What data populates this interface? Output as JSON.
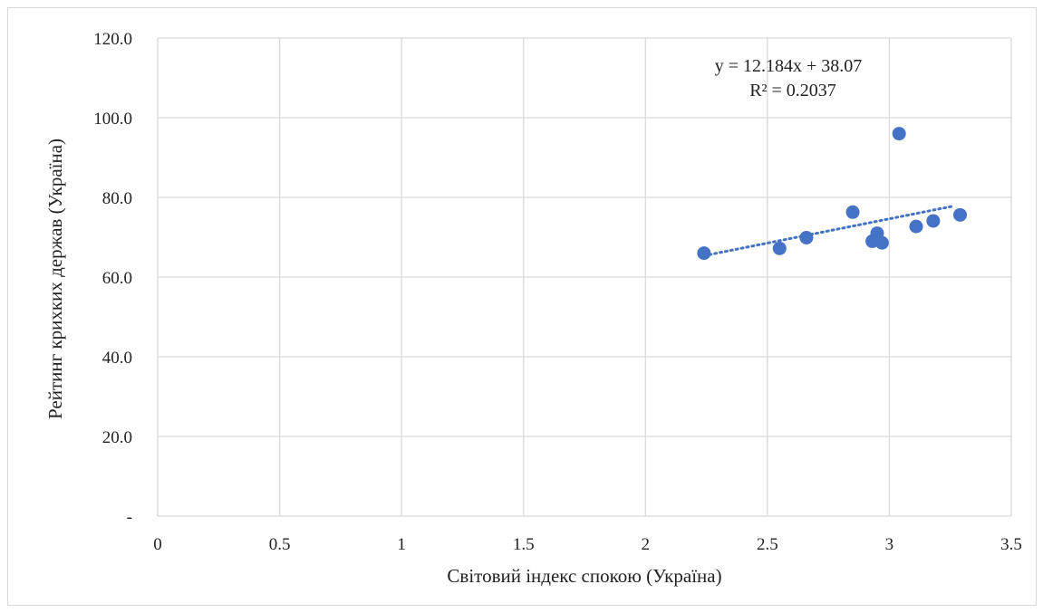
{
  "chart_data": {
    "type": "scatter",
    "xlabel": "Світовий індекс спокою (Україна)",
    "ylabel": "Рейтинг крихких держав (Україна)",
    "xlim": [
      0,
      3.5
    ],
    "ylim": [
      0,
      120
    ],
    "x_ticks": [
      "0",
      "0.5",
      "1",
      "1.5",
      "2",
      "2.5",
      "3",
      "3.5"
    ],
    "y_ticks": [
      "-",
      "20.0",
      "40.0",
      "60.0",
      "80.0",
      "100.0",
      "120.0"
    ],
    "grid": true,
    "color": "#4472c4",
    "series": [
      {
        "points": [
          {
            "x": 2.24,
            "y": 66.0
          },
          {
            "x": 2.55,
            "y": 67.2
          },
          {
            "x": 2.66,
            "y": 69.9
          },
          {
            "x": 2.85,
            "y": 76.3
          },
          {
            "x": 2.93,
            "y": 69.0
          },
          {
            "x": 2.95,
            "y": 71.0
          },
          {
            "x": 2.97,
            "y": 68.6
          },
          {
            "x": 3.04,
            "y": 96.0
          },
          {
            "x": 3.11,
            "y": 72.7
          },
          {
            "x": 3.18,
            "y": 74.1
          },
          {
            "x": 3.29,
            "y": 75.6
          }
        ]
      }
    ],
    "trendline": {
      "type": "linear",
      "slope": 12.184,
      "intercept": 38.07,
      "x_range": [
        2.24,
        3.26
      ],
      "equation": "y = 12.184x + 38.07",
      "r2": "R² = 0.2037"
    }
  }
}
